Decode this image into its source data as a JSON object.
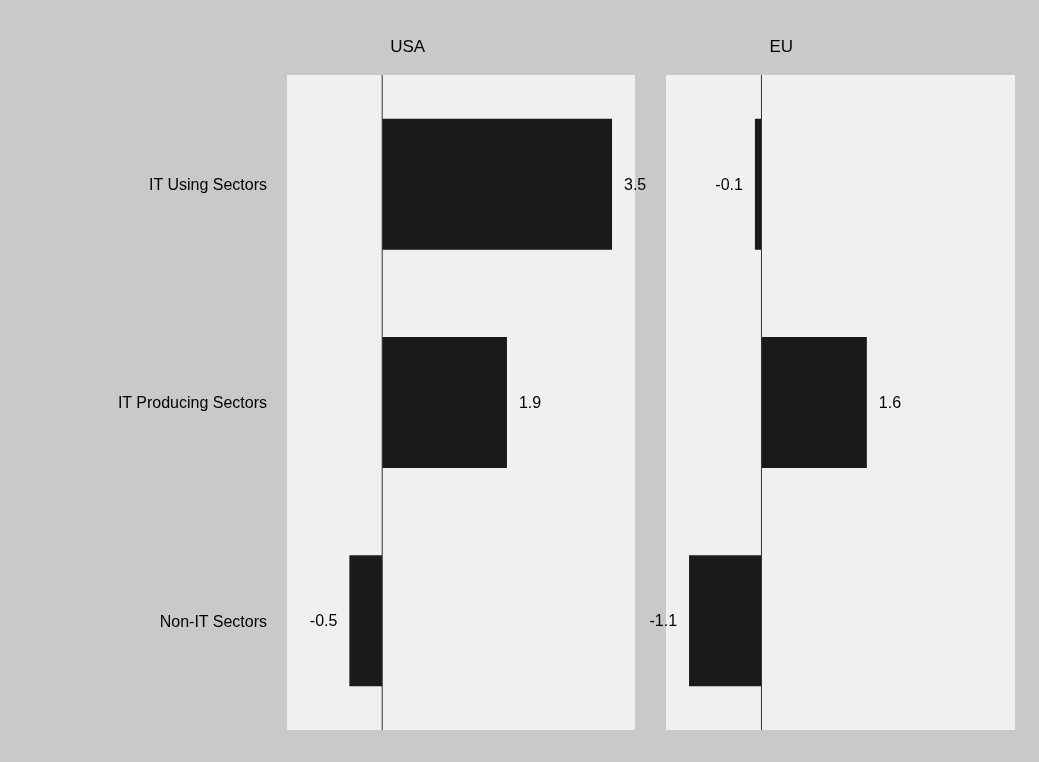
{
  "chart_data": [
    {
      "type": "bar",
      "title": "USA",
      "orientation": "horizontal",
      "categories": [
        "IT Using Sectors",
        "IT Producing Sectors",
        "Non-IT Sectors"
      ],
      "values": [
        3.5,
        1.9,
        -0.5
      ],
      "color": "#1a1a1a",
      "data_labels": true,
      "xlim": [
        -1.45,
        3.85
      ],
      "tick_labels": "y"
    },
    {
      "type": "bar",
      "title": "EU",
      "orientation": "horizontal",
      "categories": [
        null,
        null,
        null
      ],
      "values": [
        -0.1,
        1.6,
        -1.1
      ],
      "color": "#1a1a1a",
      "data_labels": true,
      "xlim": [
        -1.45,
        3.85
      ],
      "tick_labels": false
    }
  ]
}
